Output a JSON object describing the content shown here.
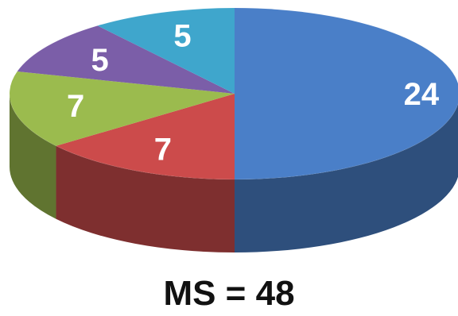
{
  "chart_data": {
    "type": "pie",
    "style": "3d",
    "slices": [
      {
        "label": "24",
        "value": 24,
        "color": "#4a7fc8"
      },
      {
        "label": "7",
        "value": 7,
        "color": "#cc4b4b"
      },
      {
        "label": "7",
        "value": 7,
        "color": "#9bbb4e"
      },
      {
        "label": "5",
        "value": 5,
        "color": "#7b5ea8"
      },
      {
        "label": "5",
        "value": 5,
        "color": "#3fa6cc"
      }
    ],
    "caption": "MS = 48"
  }
}
